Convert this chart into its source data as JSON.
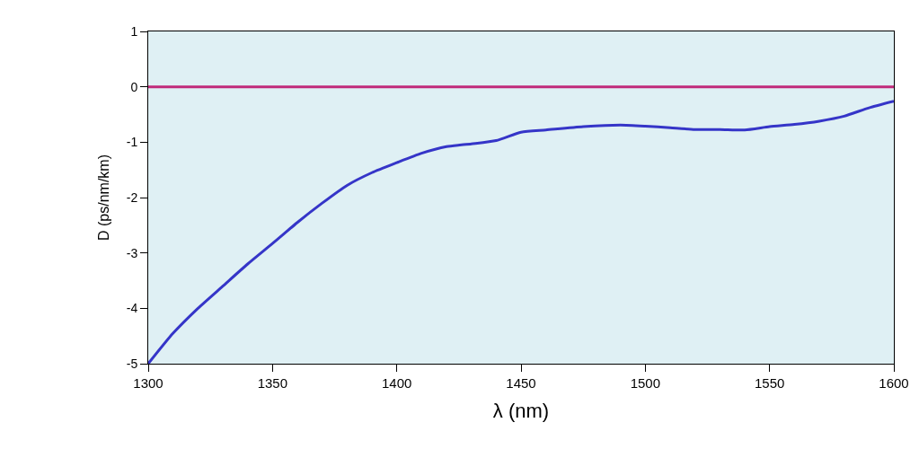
{
  "chart_data": {
    "type": "line",
    "xlabel": "λ (nm)",
    "ylabel": "D (ps/nm/km)",
    "x": [
      1300,
      1310,
      1320,
      1330,
      1340,
      1350,
      1360,
      1370,
      1380,
      1390,
      1400,
      1410,
      1420,
      1430,
      1440,
      1450,
      1460,
      1475,
      1490,
      1500,
      1510,
      1520,
      1530,
      1540,
      1550,
      1560,
      1570,
      1580,
      1590,
      1600
    ],
    "series": [
      {
        "color": "#3535c8",
        "values": [
          -5,
          -4.45,
          -4.0,
          -3.6,
          -3.2,
          -2.83,
          -2.45,
          -2.1,
          -1.78,
          -1.55,
          -1.37,
          -1.2,
          -1.08,
          -1.03,
          -0.97,
          -0.82,
          -0.78,
          -0.72,
          -0.69,
          -0.71,
          -0.74,
          -0.77,
          -0.77,
          -0.78,
          -0.72,
          -0.68,
          -0.62,
          -0.53,
          -0.38,
          -0.26
        ]
      }
    ],
    "xlim": [
      1300,
      1600
    ],
    "ylim": [
      -5,
      1
    ],
    "xticks": [
      1300,
      1350,
      1400,
      1450,
      1500,
      1550,
      1600
    ],
    "yticks": [
      -5,
      -4,
      -3,
      -2,
      -1,
      0,
      1
    ],
    "ref_lines": [
      {
        "axis": "y",
        "value": 0,
        "color": "#c02a7a"
      }
    ],
    "grid": false,
    "legend": false,
    "line_style": "solid",
    "marker": "none"
  }
}
